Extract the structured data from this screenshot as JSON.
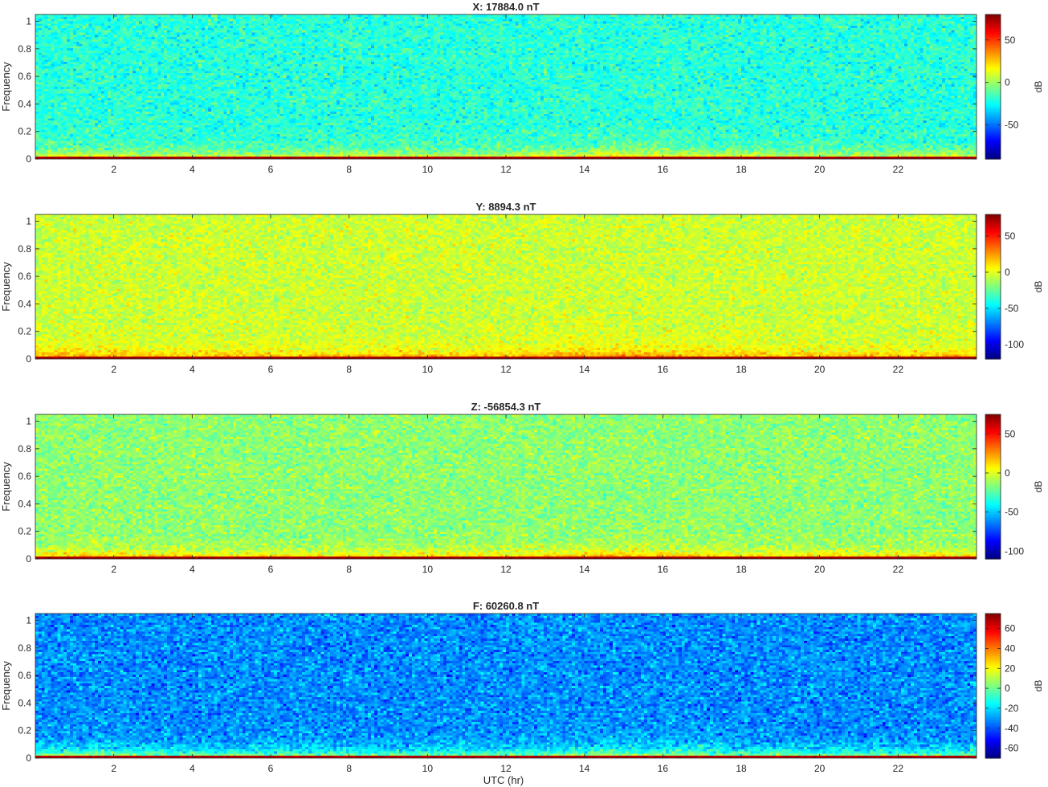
{
  "figure": {
    "xlabel": "UTC (hr)"
  },
  "chart_data": [
    {
      "type": "heatmap",
      "title": "X: 17884.0 nT",
      "ylabel": "Frequency",
      "colorbar_label": "dB",
      "colorbar_ticks": [
        50,
        0,
        -50
      ],
      "colorbar_tick_labels": [
        "50",
        "0",
        "-50"
      ],
      "clim": [
        -90,
        80
      ],
      "xlim": [
        0,
        24
      ],
      "ylim": [
        0,
        1.05
      ],
      "x_ticks": [
        2,
        4,
        6,
        8,
        10,
        12,
        14,
        16,
        18,
        20,
        22
      ],
      "x_tick_labels": [
        "2",
        "4",
        "6",
        "8",
        "10",
        "12",
        "14",
        "16",
        "18",
        "20",
        "22"
      ],
      "y_ticks": [
        0,
        0.2,
        0.4,
        0.6,
        0.8,
        1
      ],
      "y_tick_labels": [
        "0",
        "0.2",
        "0.4",
        "0.6",
        "0.8",
        "1"
      ],
      "background_db": -20,
      "low_freq_db": 30,
      "colormap": "jet"
    },
    {
      "type": "heatmap",
      "title": "Y: 8894.3 nT",
      "ylabel": "Frequency",
      "colorbar_label": "dB",
      "colorbar_ticks": [
        50,
        0,
        -50,
        -100
      ],
      "colorbar_tick_labels": [
        "50",
        "0",
        "-50",
        "-100"
      ],
      "clim": [
        -120,
        80
      ],
      "xlim": [
        0,
        24
      ],
      "ylim": [
        0,
        1.05
      ],
      "x_ticks": [
        2,
        4,
        6,
        8,
        10,
        12,
        14,
        16,
        18,
        20,
        22
      ],
      "x_tick_labels": [
        "2",
        "4",
        "6",
        "8",
        "10",
        "12",
        "14",
        "16",
        "18",
        "20",
        "22"
      ],
      "y_ticks": [
        0,
        0.2,
        0.4,
        0.6,
        0.8,
        1
      ],
      "y_tick_labels": [
        "0",
        "0.2",
        "0.4",
        "0.6",
        "0.8",
        "1"
      ],
      "background_db": -5,
      "low_freq_db": 35,
      "colormap": "jet"
    },
    {
      "type": "heatmap",
      "title": "Z: -56854.3 nT",
      "ylabel": "Frequency",
      "colorbar_label": "dB",
      "colorbar_ticks": [
        50,
        0,
        -50,
        -100
      ],
      "colorbar_tick_labels": [
        "50",
        "0",
        "-50",
        "-100"
      ],
      "clim": [
        -110,
        75
      ],
      "xlim": [
        0,
        24
      ],
      "ylim": [
        0,
        1.05
      ],
      "x_ticks": [
        2,
        4,
        6,
        8,
        10,
        12,
        14,
        16,
        18,
        20,
        22
      ],
      "x_tick_labels": [
        "2",
        "4",
        "6",
        "8",
        "10",
        "12",
        "14",
        "16",
        "18",
        "20",
        "22"
      ],
      "y_ticks": [
        0,
        0.2,
        0.4,
        0.6,
        0.8,
        1
      ],
      "y_tick_labels": [
        "0",
        "0.2",
        "0.4",
        "0.6",
        "0.8",
        "1"
      ],
      "background_db": -15,
      "low_freq_db": 30,
      "colormap": "jet"
    },
    {
      "type": "heatmap",
      "title": "F: 60260.8 nT",
      "ylabel": "Frequency",
      "colorbar_label": "dB",
      "colorbar_ticks": [
        60,
        40,
        20,
        0,
        -20,
        -40,
        -60
      ],
      "colorbar_tick_labels": [
        "60",
        "40",
        "20",
        "0",
        "-20",
        "-40",
        "-60"
      ],
      "clim": [
        -70,
        75
      ],
      "xlim": [
        0,
        24
      ],
      "ylim": [
        0,
        1.05
      ],
      "x_ticks": [
        2,
        4,
        6,
        8,
        10,
        12,
        14,
        16,
        18,
        20,
        22
      ],
      "x_tick_labels": [
        "2",
        "4",
        "6",
        "8",
        "10",
        "12",
        "14",
        "16",
        "18",
        "20",
        "22"
      ],
      "y_ticks": [
        0,
        0.2,
        0.4,
        0.6,
        0.8,
        1
      ],
      "y_tick_labels": [
        "0",
        "0.2",
        "0.4",
        "0.6",
        "0.8",
        "1"
      ],
      "background_db": -32,
      "low_freq_db": 25,
      "colormap": "jet"
    }
  ]
}
